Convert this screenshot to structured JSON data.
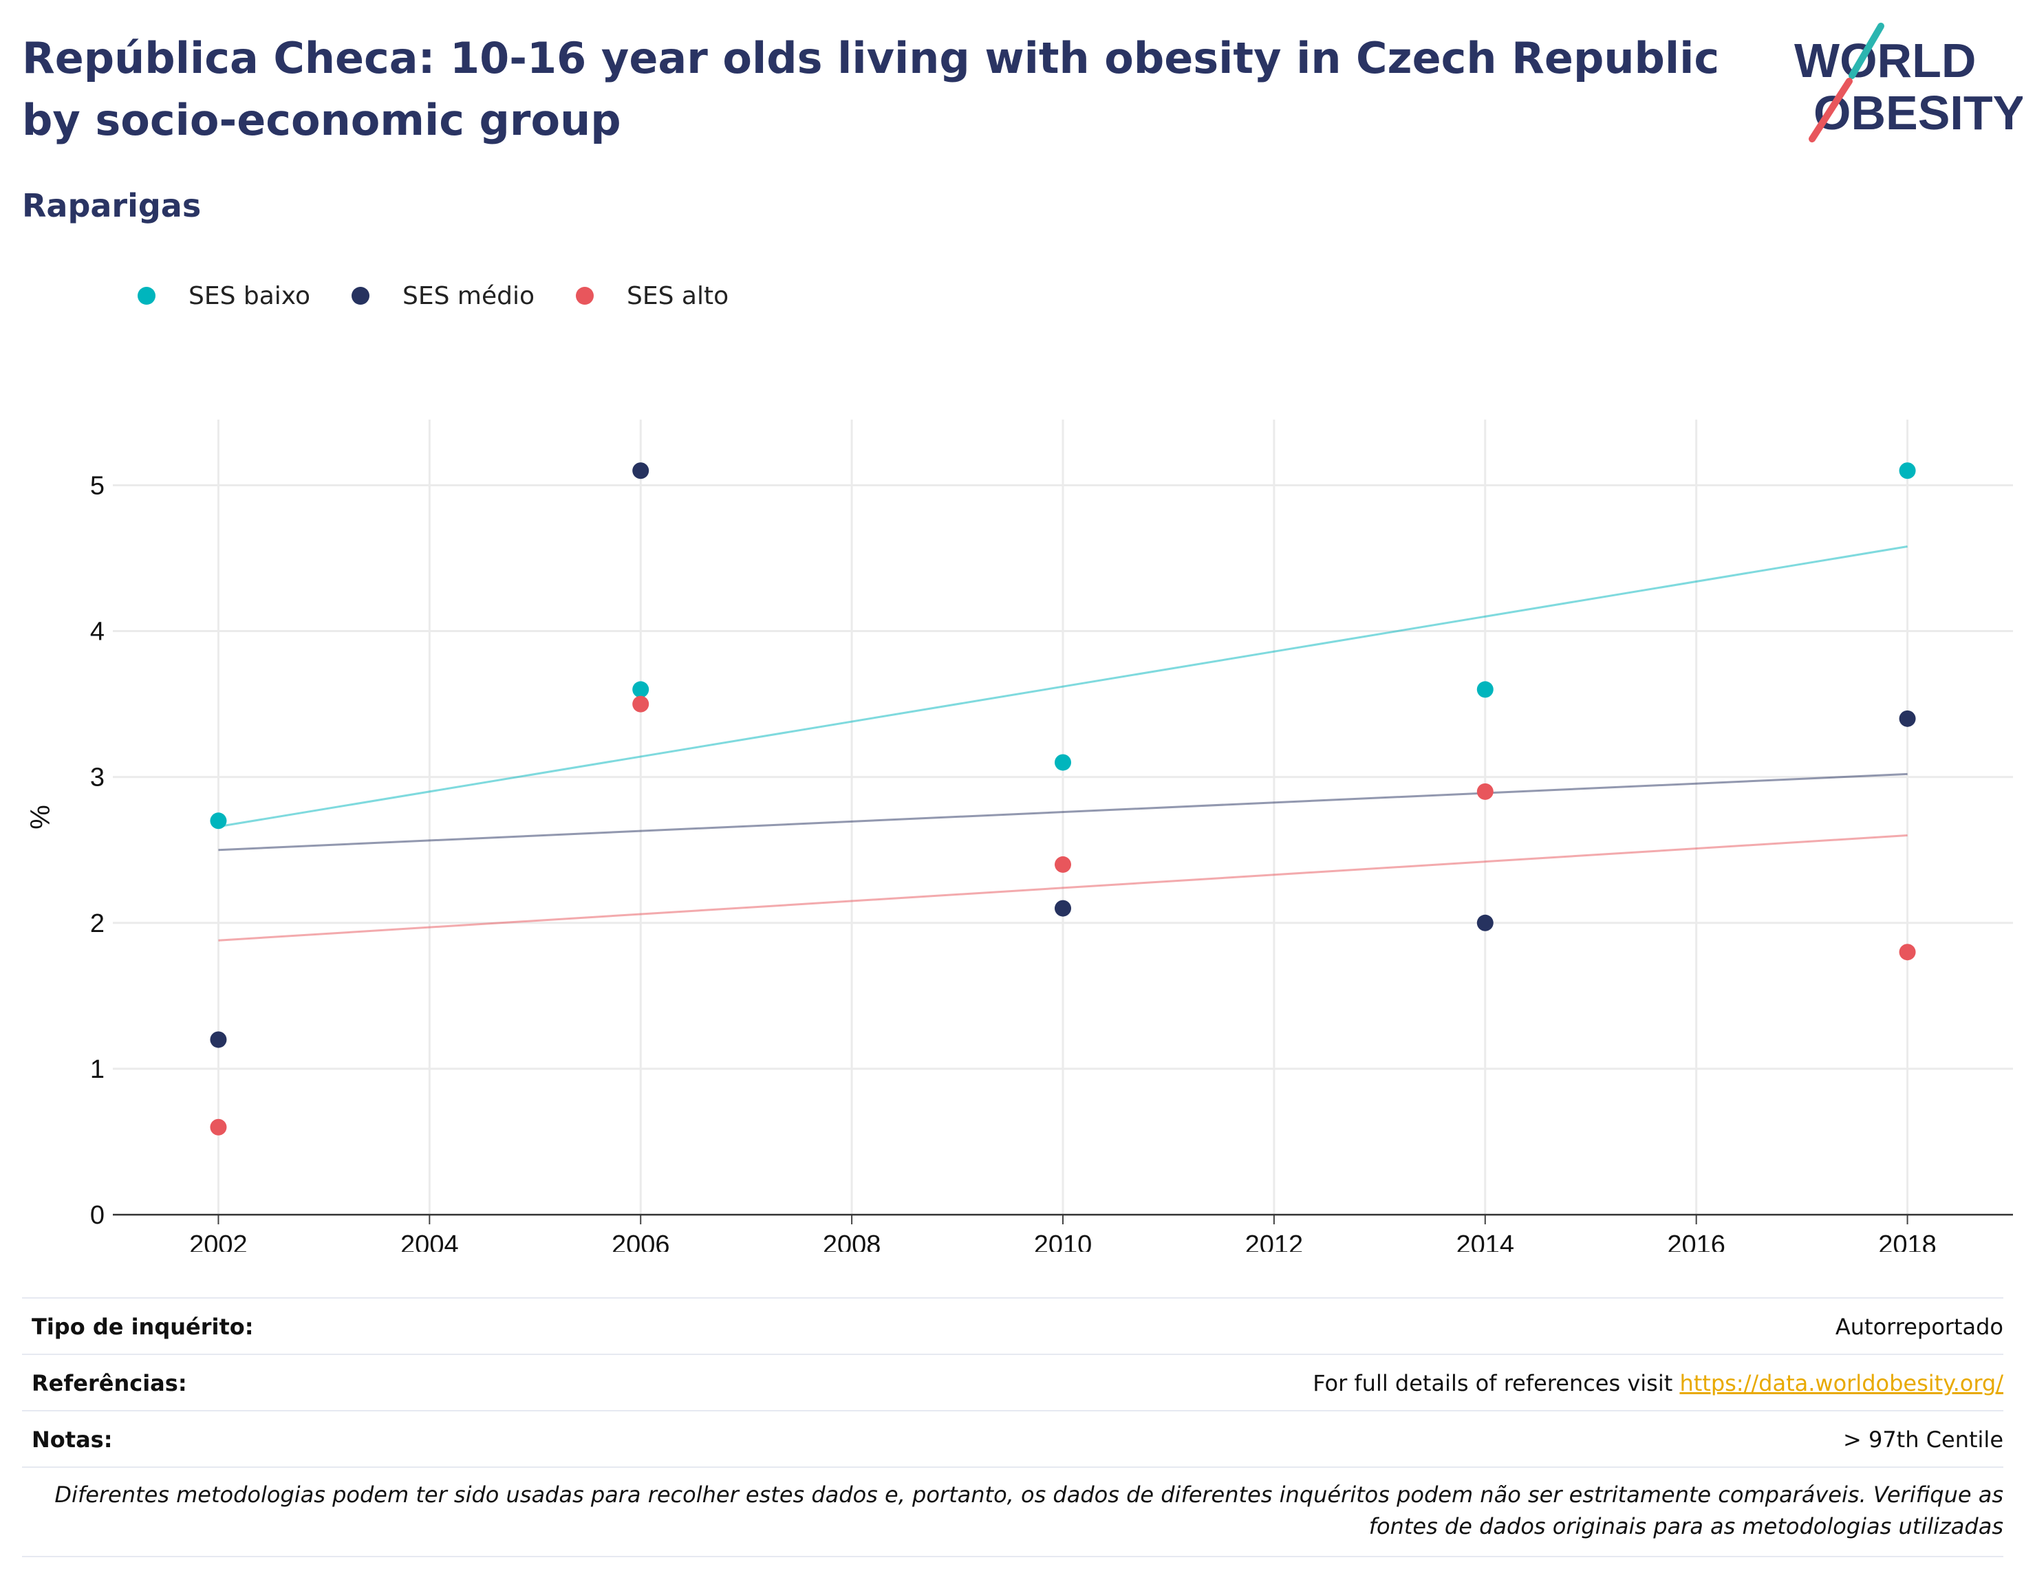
{
  "header": {
    "title": "República Checa: 10-16 year olds living with obesity in Czech Republic by socio-economic group",
    "subtitle": "Raparigas",
    "logo_line1": "WORLD",
    "logo_line2": "OBESITY"
  },
  "colors": {
    "ses_low": "#00b5bd",
    "ses_mid": "#26325f",
    "ses_high": "#e8565c",
    "title": "#2a3463",
    "link": "#e8a900"
  },
  "chart_data": {
    "type": "scatter",
    "title": "República Checa: 10-16 year olds living with obesity in Czech Republic by socio-economic group",
    "subtitle": "Raparigas",
    "ylabel": "%",
    "xlim": [
      2001,
      2019
    ],
    "ylim": [
      0,
      5.45
    ],
    "x_ticks": [
      "2002",
      "2004",
      "2006",
      "2008",
      "2010",
      "2012",
      "2014",
      "2016",
      "2018"
    ],
    "y_ticks": [
      "0",
      "1",
      "2",
      "3",
      "4",
      "5"
    ],
    "grid": true,
    "legend_position": "top-left",
    "series": [
      {
        "name": "SES baixo",
        "color": "#00b5bd",
        "points": [
          [
            2002,
            2.7
          ],
          [
            2006,
            3.6
          ],
          [
            2010,
            3.1
          ],
          [
            2014,
            3.6
          ],
          [
            2018,
            5.1
          ]
        ],
        "trend": [
          [
            2002,
            2.66
          ],
          [
            2018,
            4.58
          ]
        ]
      },
      {
        "name": "SES médio",
        "color": "#26325f",
        "points": [
          [
            2002,
            1.2
          ],
          [
            2006,
            5.1
          ],
          [
            2010,
            2.1
          ],
          [
            2014,
            2.0
          ],
          [
            2018,
            3.4
          ]
        ],
        "trend": [
          [
            2002,
            2.5
          ],
          [
            2018,
            3.02
          ]
        ]
      },
      {
        "name": "SES alto",
        "color": "#e8565c",
        "points": [
          [
            2002,
            0.6
          ],
          [
            2006,
            3.5
          ],
          [
            2010,
            2.4
          ],
          [
            2014,
            2.9
          ],
          [
            2018,
            1.8
          ]
        ],
        "trend": [
          [
            2002,
            1.88
          ],
          [
            2018,
            2.6
          ]
        ]
      }
    ]
  },
  "info": {
    "survey_label": "Tipo de inquérito:",
    "survey_value": "Autorreportado",
    "references_label": "Referências:",
    "references_text": "For full details of references visit ",
    "references_link": "https://data.worldobesity.org/",
    "notes_label": "Notas:",
    "notes_value": "> 97th Centile",
    "disclaimer": "Diferentes metodologias podem ter sido usadas para recolher estes dados e, portanto, os dados de diferentes inquéritos podem não ser estritamente comparáveis. Verifique as fontes de dados originais para as metodologias utilizadas"
  }
}
